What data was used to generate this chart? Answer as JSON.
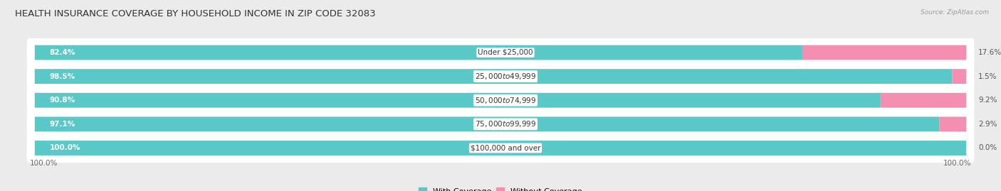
{
  "title": "HEALTH INSURANCE COVERAGE BY HOUSEHOLD INCOME IN ZIP CODE 32083",
  "source": "Source: ZipAtlas.com",
  "categories": [
    "Under $25,000",
    "$25,000 to $49,999",
    "$50,000 to $74,999",
    "$75,000 to $99,999",
    "$100,000 and over"
  ],
  "with_coverage": [
    82.4,
    98.5,
    90.8,
    97.1,
    100.0
  ],
  "without_coverage": [
    17.6,
    1.5,
    9.2,
    2.9,
    0.0
  ],
  "color_with": "#5bc8c8",
  "color_without": "#f48fb1",
  "background_color": "#ebebeb",
  "bar_bg_color": "#ffffff",
  "bar_height": 0.62,
  "title_fontsize": 9.5,
  "label_fontsize": 7.5,
  "tick_fontsize": 7.5,
  "legend_fontsize": 8,
  "x_left_label": "100.0%",
  "x_right_label": "100.0%"
}
